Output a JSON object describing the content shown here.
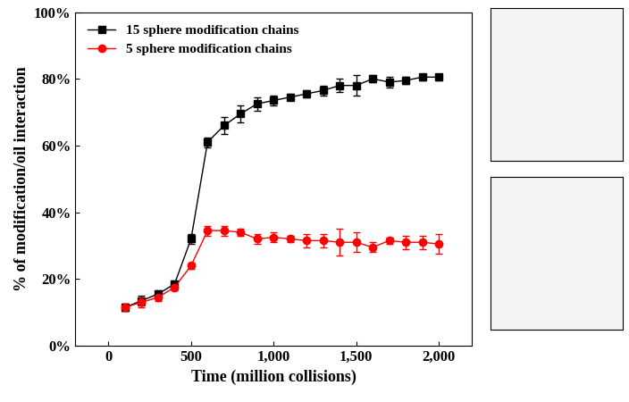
{
  "chart_data": {
    "type": "line",
    "x_label": "Time (million collisions)",
    "y_label": "% of modification/oil interaction",
    "x": [
      100,
      200,
      300,
      400,
      500,
      600,
      700,
      800,
      900,
      1000,
      1100,
      1200,
      1300,
      1400,
      1500,
      1600,
      1700,
      1800,
      1900,
      2000
    ],
    "series": [
      {
        "name": "15 sphere modification chains",
        "color": "#000000",
        "marker": "square",
        "values": [
          11.5,
          13.5,
          15.5,
          18.5,
          32,
          61,
          66,
          69.5,
          72.5,
          73.5,
          74.5,
          75.5,
          76.5,
          78,
          78,
          80,
          79,
          79.5,
          80.5,
          80.5
        ],
        "errors": [
          1,
          1.5,
          1,
          1,
          1.5,
          1.5,
          2.5,
          2.5,
          2,
          1.5,
          1,
          1,
          1.5,
          2,
          3,
          1,
          1.5,
          1,
          1,
          1
        ]
      },
      {
        "name": "5 sphere modification chains",
        "color": "#ff0000",
        "marker": "circle",
        "values": [
          11.5,
          13,
          14.5,
          17.5,
          24,
          34.5,
          34.5,
          34,
          32,
          32.5,
          32,
          31.5,
          31.5,
          31,
          31,
          29.5,
          31.5,
          31,
          31,
          30.5
        ],
        "errors": [
          1,
          1.5,
          1,
          1,
          1,
          1.5,
          1.5,
          1,
          1.5,
          1.5,
          1,
          2,
          2,
          4,
          3,
          1.5,
          1,
          2,
          2,
          3
        ]
      }
    ],
    "xlim": [
      -200,
      2200
    ],
    "xticks": [
      0,
      500,
      {
        "value": 1000,
        "label": "1,000"
      },
      {
        "value": 1500,
        "label": "1,500"
      },
      {
        "value": 2000,
        "label": "2,000"
      }
    ],
    "ylim": [
      0,
      100
    ],
    "yticks": [
      {
        "value": 0,
        "label": "0%"
      },
      {
        "value": 20,
        "label": "20%"
      },
      {
        "value": 40,
        "label": "40%"
      },
      {
        "value": 60,
        "label": "60%"
      },
      {
        "value": 80,
        "label": "80%"
      },
      {
        "value": 100,
        "label": "100%"
      }
    ],
    "legend": "upper left",
    "grid": false
  }
}
